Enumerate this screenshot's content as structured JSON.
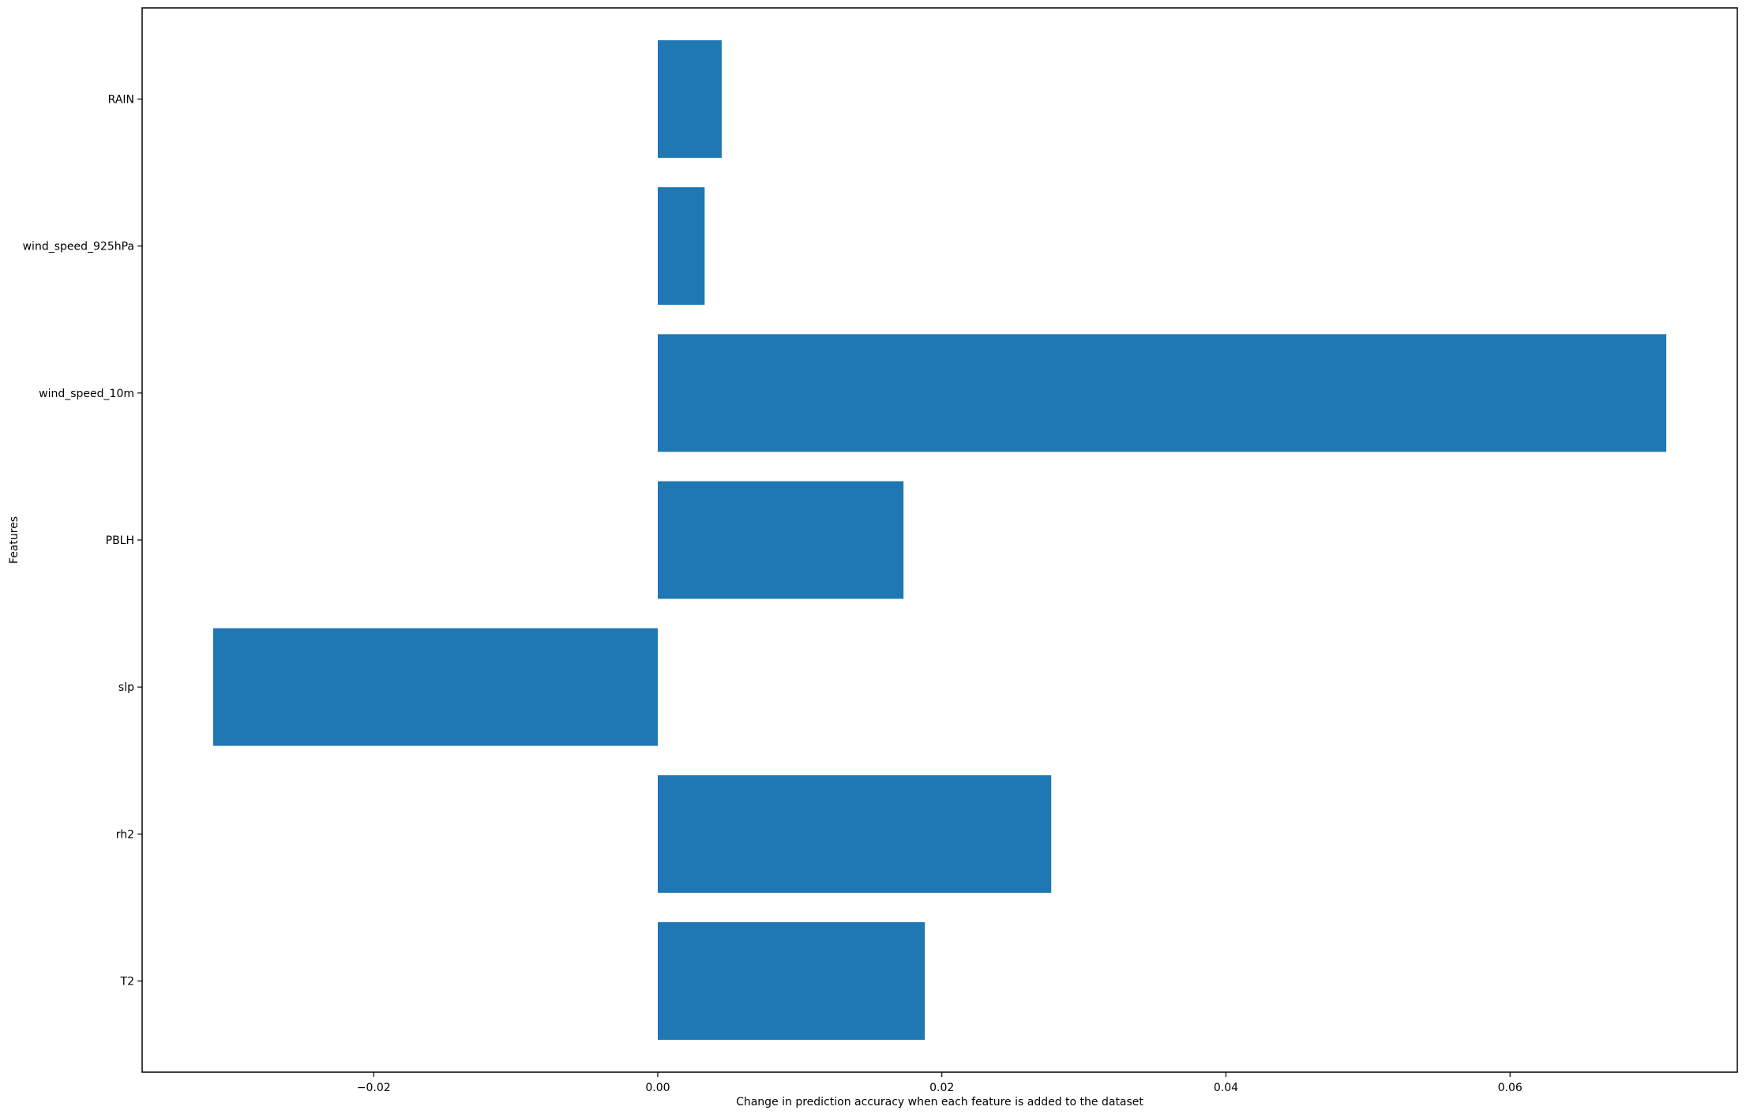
{
  "chart_data": {
    "type": "bar",
    "orientation": "horizontal",
    "title": "",
    "xlabel": "Change in prediction accuracy when each feature is added to the dataset",
    "ylabel": "Features",
    "categories": [
      "T2",
      "rh2",
      "slp",
      "PBLH",
      "wind_speed_10m",
      "wind_speed_925hPa",
      "RAIN"
    ],
    "values": [
      0.0188,
      0.0277,
      -0.0313,
      0.0173,
      0.071,
      0.0033,
      0.0045
    ],
    "xlim": [
      -0.0363,
      0.076
    ],
    "xticks": [
      -0.02,
      0.0,
      0.02,
      0.04,
      0.06
    ],
    "xtick_labels": [
      "−0.02",
      "0.00",
      "0.02",
      "0.04",
      "0.06"
    ],
    "grid": false,
    "legend": "none",
    "bar_color": "#1f77b4"
  }
}
